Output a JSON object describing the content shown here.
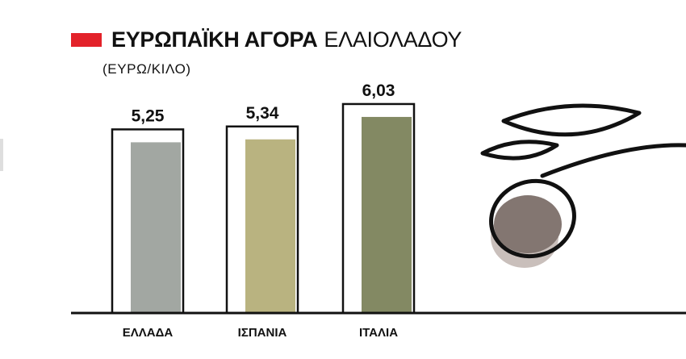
{
  "title": {
    "bold": "ΕΥΡΩΠΑΪΚΗ ΑΓΟΡΑ",
    "light": "ΕΛΑΙΟΛΑΔΟΥ",
    "marker_color": "#e3222a"
  },
  "subtitle": "(ΕΥΡΩ/ΚΙΛΟ)",
  "chart_data": {
    "type": "bar",
    "title": "ΕΥΡΩΠΑΪΚΗ ΑΓΟΡΑ ΕΛΑΙΟΛΑΔΟΥ",
    "subtitle": "(ΕΥΡΩ/ΚΙΛΟ)",
    "categories": [
      "ΕΛΛΑΔΑ",
      "ΙΣΠΑΝΙΑ",
      "ΙΤΑΛΙΑ"
    ],
    "values": [
      5.25,
      5.34,
      6.03
    ],
    "value_labels": [
      "5,25",
      "5,34",
      "6,03"
    ],
    "bar_colors": [
      "#a2a7a2",
      "#b9b380",
      "#838963"
    ],
    "ylim": [
      0,
      6.5
    ],
    "grid": false,
    "legend": "none",
    "xlabel": "",
    "ylabel": ""
  },
  "decoration": {
    "olive_fill": "#837671",
    "olive_shadow": "#c9bfbb",
    "line_color": "#111111"
  }
}
